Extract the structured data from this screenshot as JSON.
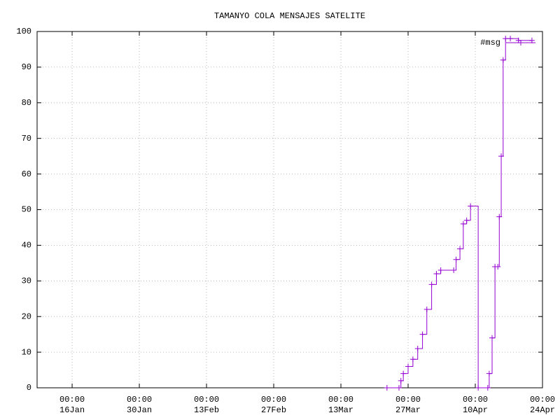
{
  "chart_data": {
    "type": "line",
    "step": true,
    "title": "TAMANYO COLA MENSAJES SATELITE",
    "series": [
      {
        "name": "#msg",
        "color": "#9400d3",
        "x": [
          81.6,
          84.1,
          84.5,
          85.0,
          86.0,
          87.0,
          88.0,
          89.0,
          89.9,
          90.9,
          91.9,
          92.8,
          95.5,
          96.0,
          96.8,
          97.5,
          98.2,
          99.0,
          100.6,
          102.6,
          102.9,
          103.5,
          104.1,
          104.7,
          105.0,
          105.4,
          105.8,
          106.3,
          107.3,
          109.0,
          111.8
        ],
        "values": [
          0,
          0,
          2,
          4,
          6,
          8,
          11,
          15,
          22,
          29,
          32,
          33,
          33,
          36,
          39,
          46,
          47,
          51,
          0,
          0,
          4,
          14,
          34,
          34,
          48,
          65,
          92,
          98,
          98,
          97.5,
          97.5
        ]
      }
    ],
    "xlim": [
      8.7,
      114
    ],
    "xticks": [
      {
        "value": 16,
        "label": [
          "00:00",
          "16Jan"
        ]
      },
      {
        "value": 30,
        "label": [
          "00:00",
          "30Jan"
        ]
      },
      {
        "value": 44,
        "label": [
          "00:00",
          "13Feb"
        ]
      },
      {
        "value": 58,
        "label": [
          "00:00",
          "27Feb"
        ]
      },
      {
        "value": 72,
        "label": [
          "00:00",
          "13Mar"
        ]
      },
      {
        "value": 86,
        "label": [
          "00:00",
          "27Mar"
        ]
      },
      {
        "value": 100,
        "label": [
          "00:00",
          "10Apr"
        ]
      },
      {
        "value": 114,
        "label": [
          "00:00",
          "24Apr"
        ]
      }
    ],
    "ylim": [
      0,
      100
    ],
    "yticks": [
      0,
      10,
      20,
      30,
      40,
      50,
      60,
      70,
      80,
      90,
      100
    ],
    "grid": true,
    "legend": "top-right"
  }
}
